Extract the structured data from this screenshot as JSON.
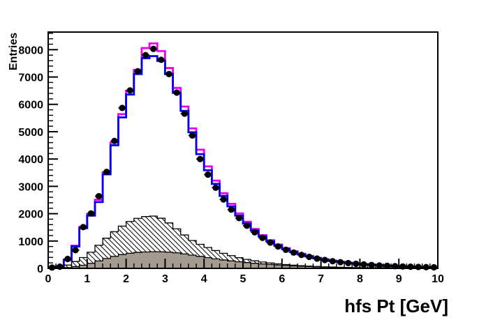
{
  "chart_data": {
    "type": "bar",
    "subtype": "step-histogram-overlay",
    "title": "",
    "xlabel": "hfs Pt [GeV]",
    "ylabel": "Entries",
    "xlim": [
      0,
      10
    ],
    "ylim": [
      0,
      8645
    ],
    "x_ticks": [
      0,
      1,
      2,
      3,
      4,
      5,
      6,
      7,
      8,
      9,
      10
    ],
    "y_ticks": [
      0,
      1000,
      2000,
      3000,
      4000,
      5000,
      6000,
      7000,
      8000
    ],
    "x_minor_step": 0.2,
    "y_minor_step": 200,
    "grid": false,
    "legend": null,
    "bin_width": 0.2,
    "bin_centers": [
      0.1,
      0.3,
      0.5,
      0.7,
      0.9,
      1.1,
      1.3,
      1.5,
      1.7,
      1.9,
      2.1,
      2.3,
      2.5,
      2.7,
      2.9,
      3.1,
      3.3,
      3.5,
      3.7,
      3.9,
      4.1,
      4.3,
      4.5,
      4.7,
      4.9,
      5.1,
      5.3,
      5.5,
      5.7,
      5.9,
      6.1,
      6.3,
      6.5,
      6.7,
      6.9,
      7.1,
      7.3,
      7.5,
      7.7,
      7.9,
      8.1,
      8.3,
      8.5,
      8.7,
      8.9,
      9.1,
      9.3,
      9.5,
      9.7,
      9.9
    ],
    "colors": {
      "magenta_line": "#ee00ee",
      "blue_line": "#0000ee",
      "gray_fill": "#a49a90",
      "hatch_line": "#000000",
      "axis": "#000000",
      "background": "#ffffff"
    },
    "series": [
      {
        "name": "hatched-histogram",
        "type": "step-filled",
        "fill": "hatch",
        "outline": "#000000",
        "values": [
          4,
          30,
          120,
          250,
          395,
          590,
          845,
          1105,
          1340,
          1545,
          1715,
          1830,
          1895,
          1912,
          1835,
          1662,
          1448,
          1222,
          1020,
          880,
          762,
          652,
          550,
          465,
          390,
          328,
          276,
          232,
          196,
          165,
          139,
          117,
          98,
          82,
          69,
          58,
          49,
          41,
          34,
          29,
          24,
          20,
          17,
          14,
          12,
          10,
          8,
          7,
          6,
          5
        ]
      },
      {
        "name": "gray-histogram",
        "type": "step-filled",
        "fill": "#a49a90",
        "outline": "#000000",
        "values": [
          2,
          8,
          28,
          65,
          115,
          185,
          270,
          360,
          440,
          505,
          552,
          585,
          600,
          608,
          605,
          592,
          568,
          530,
          485,
          438,
          392,
          348,
          308,
          272,
          240,
          212,
          186,
          162,
          141,
          122,
          105,
          90,
          77,
          66,
          56,
          47,
          40,
          33,
          28,
          23,
          19,
          16,
          13,
          11,
          9,
          7,
          6,
          5,
          4,
          3
        ]
      },
      {
        "name": "magenta-histogram",
        "type": "step",
        "color": "#ee00ee",
        "values": [
          25,
          75,
          320,
          830,
          1520,
          1990,
          2510,
          3510,
          4600,
          5640,
          6500,
          7260,
          8060,
          8230,
          7950,
          7330,
          6600,
          5920,
          5120,
          4340,
          3730,
          3210,
          2750,
          2360,
          2010,
          1705,
          1440,
          1215,
          1030,
          870,
          738,
          625,
          532,
          452,
          386,
          330,
          282,
          242,
          208,
          179,
          154,
          133,
          115,
          99,
          86,
          75,
          65,
          57,
          50,
          44
        ]
      },
      {
        "name": "blue-histogram",
        "type": "step",
        "color": "#0000ee",
        "values": [
          22,
          68,
          300,
          800,
          1470,
          1930,
          2425,
          3440,
          4505,
          5525,
          6360,
          7110,
          7690,
          7765,
          7590,
          7110,
          6420,
          5760,
          4980,
          4180,
          3590,
          3090,
          2650,
          2270,
          1930,
          1640,
          1385,
          1170,
          990,
          838,
          710,
          602,
          512,
          436,
          372,
          318,
          272,
          233,
          200,
          172,
          148,
          128,
          110,
          95,
          82,
          71,
          62,
          54,
          47,
          41
        ]
      },
      {
        "name": "data-points",
        "type": "points",
        "color": "#000000",
        "marker": "filled-circle",
        "values": [
          30,
          60,
          345,
          665,
          1510,
          2010,
          2640,
          3530,
          4660,
          5870,
          6510,
          7210,
          7800,
          8030,
          7630,
          7110,
          6430,
          5660,
          4860,
          4000,
          3430,
          2950,
          2520,
          2150,
          1840,
          1560,
          1320,
          1115,
          945,
          800,
          680,
          578,
          492,
          420,
          358,
          306,
          262,
          225,
          193,
          166,
          143,
          123,
          106,
          92,
          79,
          69,
          60,
          52,
          45,
          39
        ]
      }
    ]
  }
}
